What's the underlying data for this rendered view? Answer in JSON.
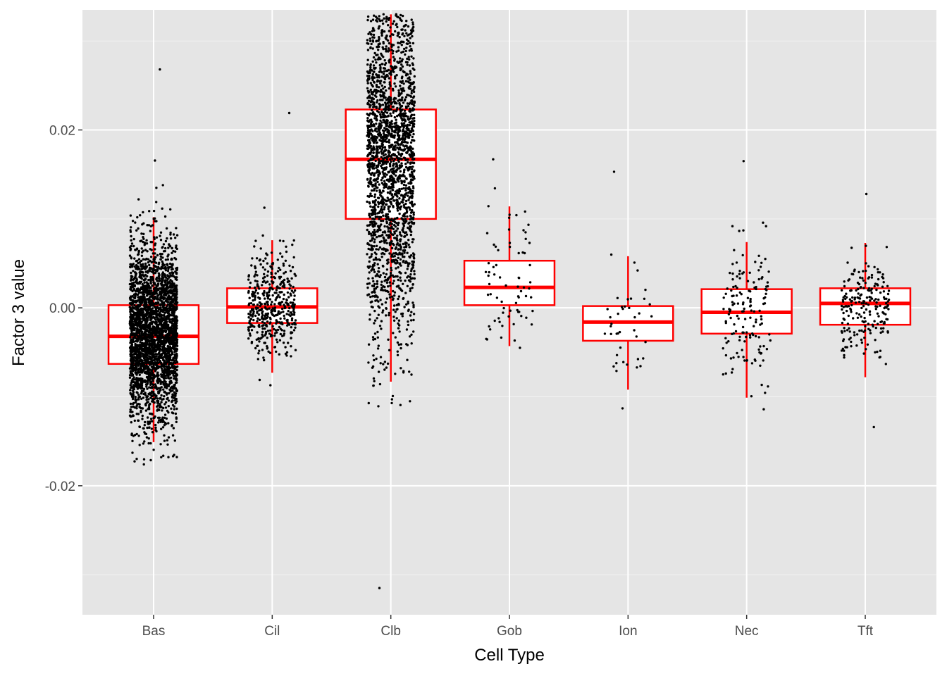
{
  "chart_data": {
    "type": "box",
    "title": "",
    "xlabel": "Cell Type",
    "ylabel": "Factor 3 value",
    "ylim": [
      -0.0345,
      0.0335
    ],
    "yticks": [
      -0.02,
      0.0,
      0.02
    ],
    "ytick_labels": [
      "-0.02",
      "0.00",
      "0.02"
    ],
    "grid": true,
    "background_color": "#e5e5e5",
    "box_color": "#ff0000",
    "point_color": "#000000",
    "categories": [
      "Bas",
      "Cil",
      "Clb",
      "Gob",
      "Ion",
      "Nec",
      "Tft"
    ],
    "boxes": [
      {
        "category": "Bas",
        "whisker_low": -0.0151,
        "q1": -0.0063,
        "median": -0.0032,
        "q3": 0.0003,
        "whisker_high": 0.0102,
        "n_points": 3000,
        "jitter_min": -0.0176,
        "jitter_max": 0.0268
      },
      {
        "category": "Cil",
        "whisker_low": -0.0073,
        "q1": -0.0017,
        "median": 0.0001,
        "q3": 0.0022,
        "whisker_high": 0.0076,
        "n_points": 450,
        "jitter_min": -0.0087,
        "jitter_max": 0.0219
      },
      {
        "category": "Clb",
        "whisker_low": -0.0083,
        "q1": 0.01,
        "median": 0.0167,
        "q3": 0.0223,
        "whisker_high": 0.033,
        "n_points": 2200,
        "jitter_min": -0.0315,
        "jitter_max": 0.033
      },
      {
        "category": "Gob",
        "whisker_low": -0.0043,
        "q1": 0.0003,
        "median": 0.0023,
        "q3": 0.0053,
        "whisker_high": 0.0114,
        "n_points": 70,
        "jitter_min": -0.0045,
        "jitter_max": 0.0167
      },
      {
        "category": "Ion",
        "whisker_low": -0.0092,
        "q1": -0.0037,
        "median": -0.0016,
        "q3": 0.0002,
        "whisker_high": 0.0058,
        "n_points": 40,
        "jitter_min": -0.0113,
        "jitter_max": 0.0153
      },
      {
        "category": "Nec",
        "whisker_low": -0.0101,
        "q1": -0.0029,
        "median": -0.0005,
        "q3": 0.0021,
        "whisker_high": 0.0074,
        "n_points": 150,
        "jitter_min": -0.0114,
        "jitter_max": 0.0165
      },
      {
        "category": "Tft",
        "whisker_low": -0.0078,
        "q1": -0.0019,
        "median": 0.0005,
        "q3": 0.0022,
        "whisker_high": 0.0073,
        "n_points": 220,
        "jitter_min": -0.0134,
        "jitter_max": 0.0128
      }
    ]
  }
}
